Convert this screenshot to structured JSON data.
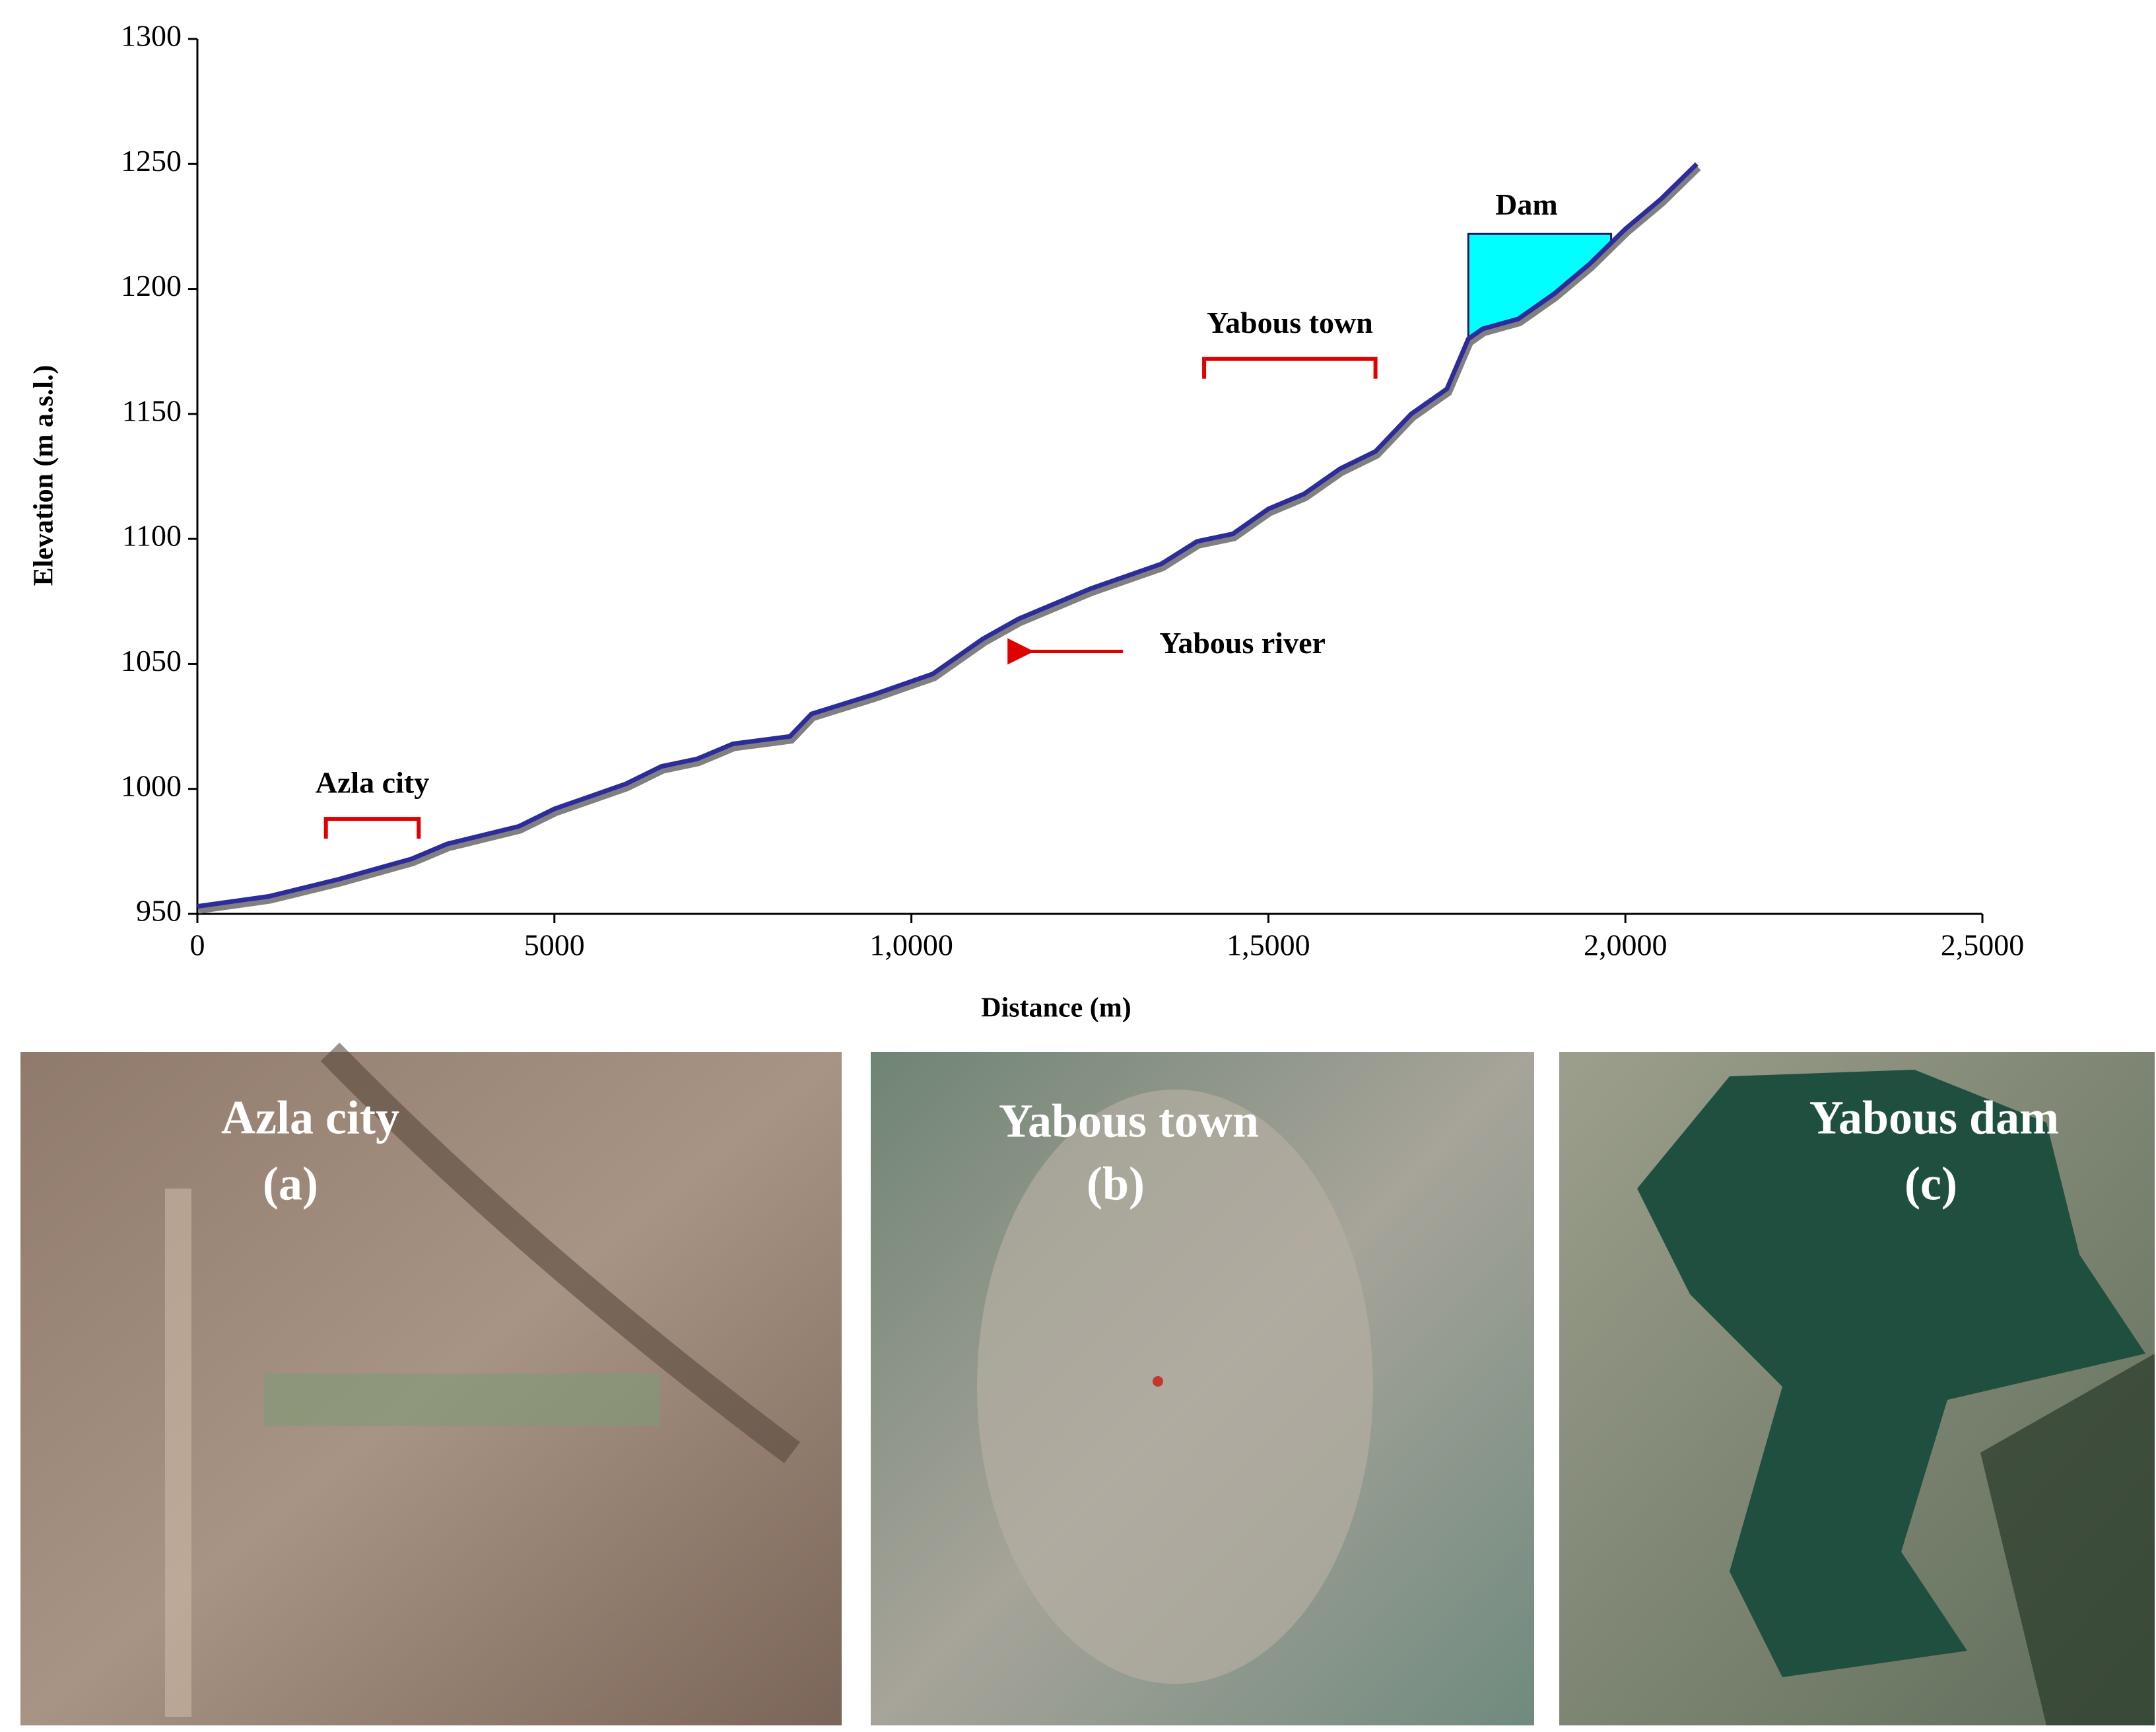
{
  "chart_data": {
    "type": "line",
    "xlabel": "Distance (m)",
    "ylabel": "Elevation (m a.s.l.)",
    "x": [
      0,
      1000,
      2000,
      3000,
      3500,
      4500,
      5000,
      6000,
      6500,
      7000,
      7500,
      8300,
      8600,
      9500,
      10300,
      11000,
      11500,
      12500,
      13500,
      14000,
      14500,
      15000,
      15500,
      16000,
      16500,
      17000,
      17500,
      17800,
      18000,
      18500,
      19000,
      19500,
      20000,
      20500,
      21000
    ],
    "values": [
      953,
      957,
      964,
      972,
      978,
      985,
      992,
      1002,
      1009,
      1012,
      1018,
      1021,
      1030,
      1038,
      1046,
      1060,
      1068,
      1080,
      1090,
      1099,
      1102,
      1112,
      1118,
      1128,
      1135,
      1150,
      1160,
      1180,
      1184,
      1188,
      1198,
      1210,
      1224,
      1236,
      1250
    ],
    "color": "#2c2c9c",
    "xlim": [
      0,
      25000
    ],
    "xticks": [
      0,
      5000,
      {
        "value": 10000,
        "label": "1,0000"
      },
      {
        "value": 15000,
        "label": "1,5000"
      },
      {
        "value": 20000,
        "label": "2,0000"
      },
      {
        "value": 25000,
        "label": "2,5000"
      }
    ],
    "ylim": [
      950,
      1300
    ],
    "yticks": [
      950,
      1000,
      1050,
      1100,
      1150,
      1200,
      1250,
      1300
    ],
    "reservoir": {
      "text": "Dam",
      "x": [
        17800,
        19800
      ],
      "level": 1222,
      "color": "#00ffff"
    },
    "brackets": [
      {
        "text": "Azla city",
        "x": [
          1800,
          3100
        ],
        "y": 988
      },
      {
        "text": "Yabous town",
        "x": [
          14100,
          16500
        ],
        "y": 1172
      }
    ],
    "arrow": {
      "text": "Yabous river",
      "x": 11300,
      "y": 1055
    }
  },
  "panels": [
    {
      "title": "Azla city",
      "label": "(a)"
    },
    {
      "title": "Yabous town",
      "label": "(b)"
    },
    {
      "title": "Yabous dam",
      "label": "(c)"
    }
  ]
}
